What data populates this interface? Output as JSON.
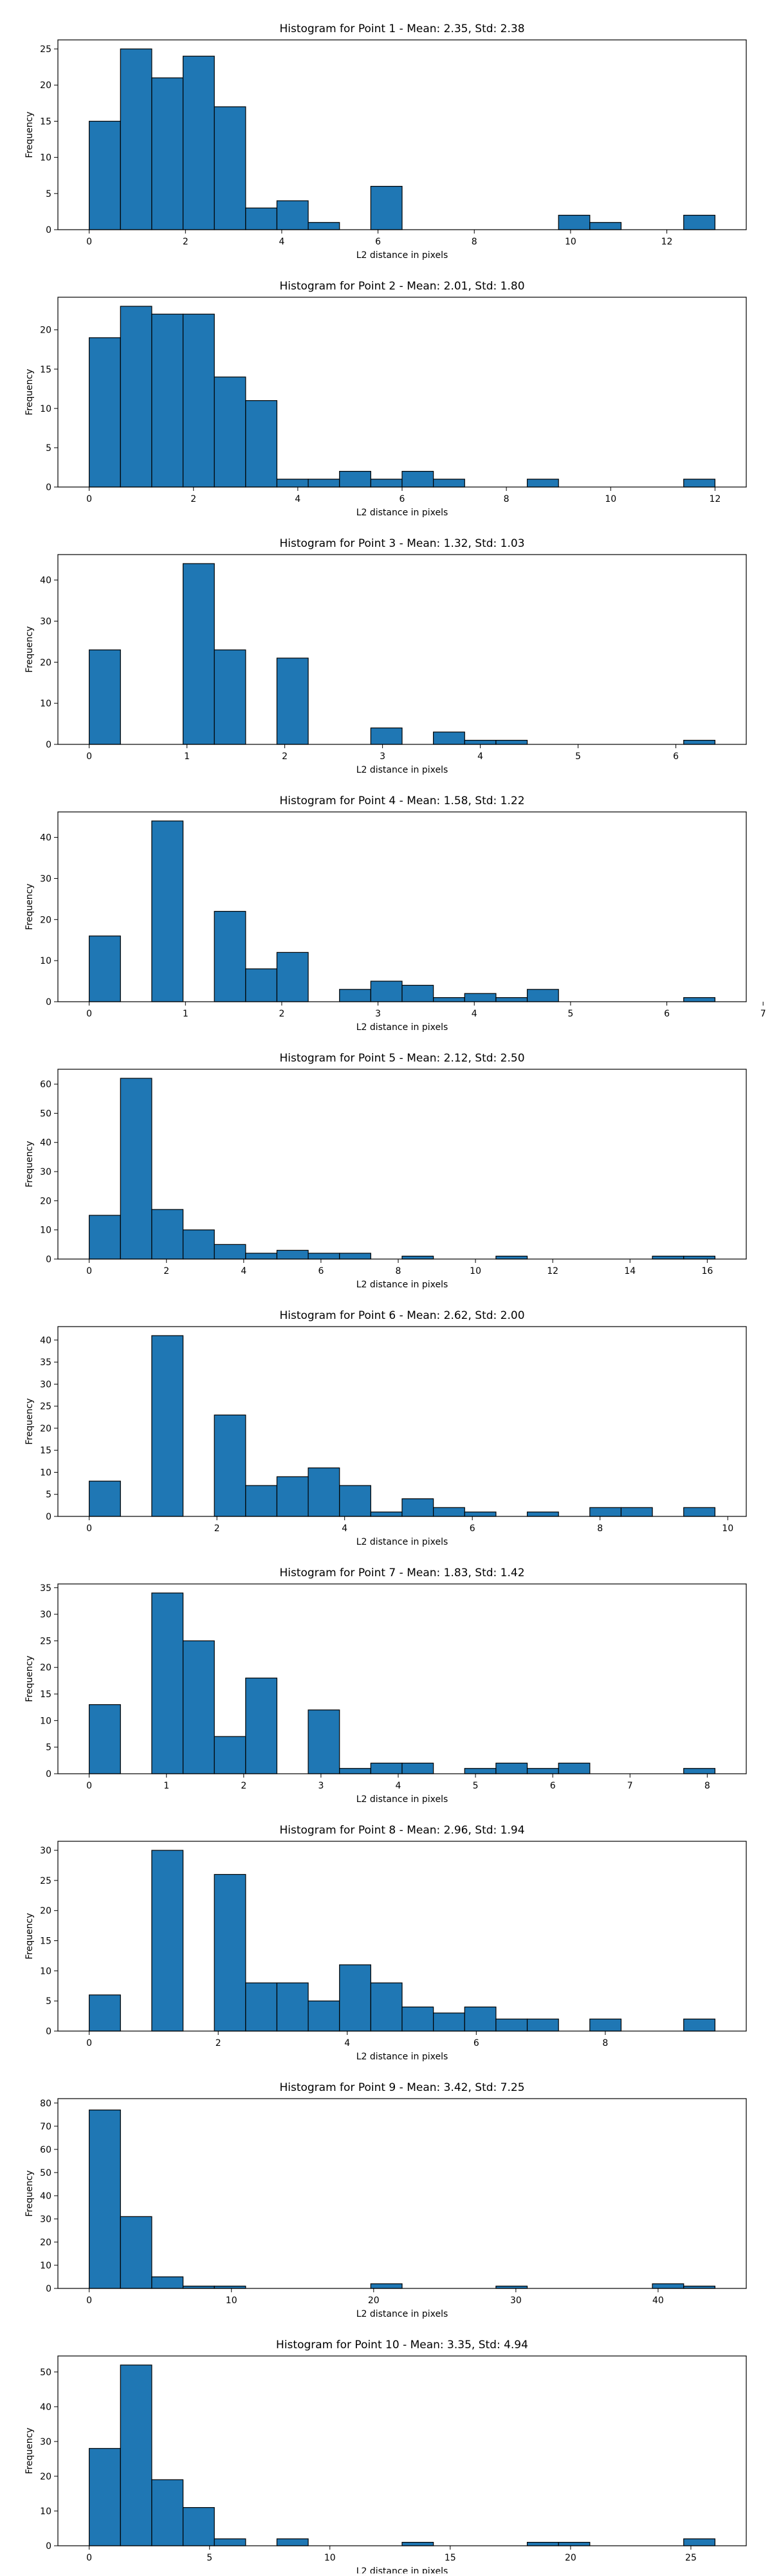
{
  "chart_data": [
    {
      "type": "bar",
      "title": "Histogram for Point 1 - Mean: 2.35, Std: 2.38",
      "xlabel": "L2 distance in pixels",
      "ylabel": "Frequency",
      "xlim": [
        -0.65,
        13.65
      ],
      "ylim": [
        0,
        26.25
      ],
      "xticks": [
        0,
        2,
        4,
        6,
        8,
        10,
        12
      ],
      "yticks": [
        0,
        5,
        10,
        15,
        20,
        25
      ],
      "bin_edges": [
        0,
        0.65,
        1.3,
        1.95,
        2.6,
        3.25,
        3.9,
        4.55,
        5.2,
        5.85,
        6.5,
        7.15,
        7.8,
        8.45,
        9.1,
        9.75,
        10.4,
        11.05,
        11.7,
        12.35,
        13.0
      ],
      "values": [
        15,
        25,
        21,
        24,
        17,
        3,
        4,
        1,
        0,
        6,
        0,
        0,
        0,
        0,
        0,
        2,
        1,
        0,
        0,
        2
      ]
    },
    {
      "type": "bar",
      "title": "Histogram for Point 2 - Mean: 2.01, Std: 1.80",
      "xlabel": "L2 distance in pixels",
      "ylabel": "Frequency",
      "xlim": [
        -0.6,
        12.6
      ],
      "ylim": [
        0,
        24.15
      ],
      "xticks": [
        0,
        2,
        4,
        6,
        8,
        10,
        12
      ],
      "yticks": [
        0,
        5,
        10,
        15,
        20
      ],
      "bin_edges": [
        0,
        0.6,
        1.2,
        1.8,
        2.4,
        3.0,
        3.6,
        4.2,
        4.8,
        5.4,
        6.0,
        6.6,
        7.2,
        7.8,
        8.4,
        9.0,
        9.6,
        10.2,
        10.8,
        11.4,
        12.0
      ],
      "values": [
        19,
        23,
        22,
        22,
        14,
        11,
        1,
        1,
        2,
        1,
        2,
        1,
        0,
        0,
        1,
        0,
        0,
        0,
        0,
        1
      ]
    },
    {
      "type": "bar",
      "title": "Histogram for Point 3 - Mean: 1.32, Std: 1.03",
      "xlabel": "L2 distance in pixels",
      "ylabel": "Frequency",
      "xlim": [
        -0.32,
        6.72
      ],
      "ylim": [
        0,
        46.2
      ],
      "xticks": [
        0,
        1,
        2,
        3,
        4,
        5,
        6
      ],
      "yticks": [
        0,
        10,
        20,
        30,
        40
      ],
      "bin_edges": [
        0,
        0.32,
        0.64,
        0.96,
        1.28,
        1.6,
        1.92,
        2.24,
        2.56,
        2.88,
        3.2,
        3.52,
        3.84,
        4.16,
        4.48,
        4.8,
        5.12,
        5.44,
        5.76,
        6.08,
        6.4
      ],
      "values": [
        23,
        0,
        0,
        44,
        23,
        0,
        21,
        0,
        0,
        4,
        0,
        3,
        1,
        1,
        0,
        0,
        0,
        0,
        0,
        1
      ]
    },
    {
      "type": "bar",
      "title": "Histogram for Point 4 - Mean: 1.58, Std: 1.22",
      "xlabel": "L2 distance in pixels",
      "ylabel": "Frequency",
      "xlim": [
        -0.325,
        6.825
      ],
      "ylim": [
        0,
        46.2
      ],
      "xticks": [
        0,
        1,
        2,
        3,
        4,
        5,
        6,
        7
      ],
      "yticks": [
        0,
        10,
        20,
        30,
        40
      ],
      "bin_edges": [
        0,
        0.325,
        0.65,
        0.975,
        1.3,
        1.625,
        1.95,
        2.275,
        2.6,
        2.925,
        3.25,
        3.575,
        3.9,
        4.225,
        4.55,
        4.875,
        5.2,
        5.525,
        5.85,
        6.175,
        6.5
      ],
      "values": [
        16,
        0,
        44,
        0,
        22,
        8,
        12,
        0,
        3,
        5,
        4,
        1,
        2,
        1,
        3,
        0,
        0,
        0,
        0,
        1
      ]
    },
    {
      "type": "bar",
      "title": "Histogram for Point 5 - Mean: 2.12, Std: 2.50",
      "xlabel": "L2 distance in pixels",
      "ylabel": "Frequency",
      "xlim": [
        -0.81,
        17.01
      ],
      "ylim": [
        0,
        65.1
      ],
      "xticks": [
        0,
        2,
        4,
        6,
        8,
        10,
        12,
        14,
        16
      ],
      "yticks": [
        0,
        10,
        20,
        30,
        40,
        50,
        60
      ],
      "bin_edges": [
        0,
        0.81,
        1.62,
        2.43,
        3.24,
        4.05,
        4.86,
        5.67,
        6.48,
        7.29,
        8.1,
        8.91,
        9.72,
        10.53,
        11.34,
        12.15,
        12.96,
        13.77,
        14.58,
        15.39,
        16.2
      ],
      "values": [
        15,
        62,
        17,
        10,
        5,
        2,
        3,
        2,
        2,
        0,
        1,
        0,
        0,
        1,
        0,
        0,
        0,
        0,
        1,
        1
      ]
    },
    {
      "type": "bar",
      "title": "Histogram for Point 6 - Mean: 2.62, Std: 2.00",
      "xlabel": "L2 distance in pixels",
      "ylabel": "Frequency",
      "xlim": [
        -0.49,
        10.29
      ],
      "ylim": [
        0,
        43.05
      ],
      "xticks": [
        0,
        2,
        4,
        6,
        8,
        10
      ],
      "yticks": [
        0,
        5,
        10,
        15,
        20,
        25,
        30,
        35,
        40
      ],
      "bin_edges": [
        0,
        0.49,
        0.98,
        1.47,
        1.96,
        2.45,
        2.94,
        3.43,
        3.92,
        4.41,
        4.9,
        5.39,
        5.88,
        6.37,
        6.86,
        7.35,
        7.84,
        8.33,
        8.82,
        9.31,
        9.8
      ],
      "values": [
        8,
        0,
        41,
        0,
        23,
        7,
        9,
        11,
        7,
        1,
        4,
        2,
        1,
        0,
        1,
        0,
        2,
        2,
        0,
        2
      ]
    },
    {
      "type": "bar",
      "title": "Histogram for Point 7 - Mean: 1.83, Std: 1.42",
      "xlabel": "L2 distance in pixels",
      "ylabel": "Frequency",
      "xlim": [
        -0.405,
        8.505
      ],
      "ylim": [
        0,
        35.7
      ],
      "xticks": [
        0,
        1,
        2,
        3,
        4,
        5,
        6,
        7,
        8
      ],
      "yticks": [
        0,
        5,
        10,
        15,
        20,
        25,
        30,
        35
      ],
      "bin_edges": [
        0,
        0.405,
        0.81,
        1.215,
        1.62,
        2.025,
        2.43,
        2.835,
        3.24,
        3.645,
        4.05,
        4.455,
        4.86,
        5.265,
        5.67,
        6.075,
        6.48,
        6.885,
        7.29,
        7.695,
        8.1
      ],
      "values": [
        13,
        0,
        34,
        25,
        7,
        18,
        0,
        12,
        1,
        2,
        2,
        0,
        1,
        2,
        1,
        2,
        0,
        0,
        0,
        1
      ]
    },
    {
      "type": "bar",
      "title": "Histogram for Point 8 - Mean: 2.96, Std: 1.94",
      "xlabel": "L2 distance in pixels",
      "ylabel": "Frequency",
      "xlim": [
        -0.485,
        10.185
      ],
      "ylim": [
        0,
        31.5
      ],
      "xticks": [
        0,
        2,
        4,
        6,
        8
      ],
      "yticks": [
        0,
        5,
        10,
        15,
        20,
        25,
        30
      ],
      "bin_edges": [
        0,
        0.485,
        0.97,
        1.455,
        1.94,
        2.425,
        2.91,
        3.395,
        3.88,
        4.365,
        4.85,
        5.335,
        5.82,
        6.305,
        6.79,
        7.275,
        7.76,
        8.245,
        8.73,
        9.215,
        9.7
      ],
      "values": [
        6,
        0,
        30,
        0,
        26,
        8,
        8,
        5,
        11,
        8,
        4,
        3,
        4,
        2,
        2,
        0,
        2,
        0,
        0,
        2
      ]
    },
    {
      "type": "bar",
      "title": "Histogram for Point 9 - Mean: 3.42, Std: 7.25",
      "xlabel": "L2 distance in pixels",
      "ylabel": "Frequency",
      "xlim": [
        -2.2,
        46.2
      ],
      "ylim": [
        0,
        81.9
      ],
      "xticks": [
        0,
        10,
        20,
        30,
        40
      ],
      "yticks": [
        0,
        10,
        20,
        30,
        40,
        50,
        60,
        70,
        80
      ],
      "bin_edges": [
        0,
        2.2,
        4.4,
        6.6,
        8.8,
        11.0,
        13.2,
        15.4,
        17.6,
        19.8,
        22.0,
        24.2,
        26.4,
        28.6,
        30.8,
        33.0,
        35.2,
        37.4,
        39.6,
        41.8,
        44.0
      ],
      "values": [
        77,
        31,
        5,
        1,
        1,
        0,
        0,
        0,
        0,
        2,
        0,
        0,
        0,
        1,
        0,
        0,
        0,
        0,
        2,
        1
      ]
    },
    {
      "type": "bar",
      "title": "Histogram for Point 10 - Mean: 3.35, Std: 4.94",
      "xlabel": "L2 distance in pixels",
      "ylabel": "Frequency",
      "xlim": [
        -1.3,
        27.3
      ],
      "ylim": [
        0,
        54.6
      ],
      "xticks": [
        0,
        5,
        10,
        15,
        20,
        25
      ],
      "yticks": [
        0,
        10,
        20,
        30,
        40,
        50
      ],
      "bin_edges": [
        0,
        1.3,
        2.6,
        3.9,
        5.2,
        6.5,
        7.8,
        9.1,
        10.4,
        11.7,
        13.0,
        14.3,
        15.6,
        16.9,
        18.2,
        19.5,
        20.8,
        22.1,
        23.4,
        24.7,
        26.0
      ],
      "values": [
        28,
        52,
        19,
        11,
        2,
        0,
        2,
        0,
        0,
        0,
        1,
        0,
        0,
        0,
        1,
        1,
        0,
        0,
        0,
        2
      ]
    }
  ]
}
